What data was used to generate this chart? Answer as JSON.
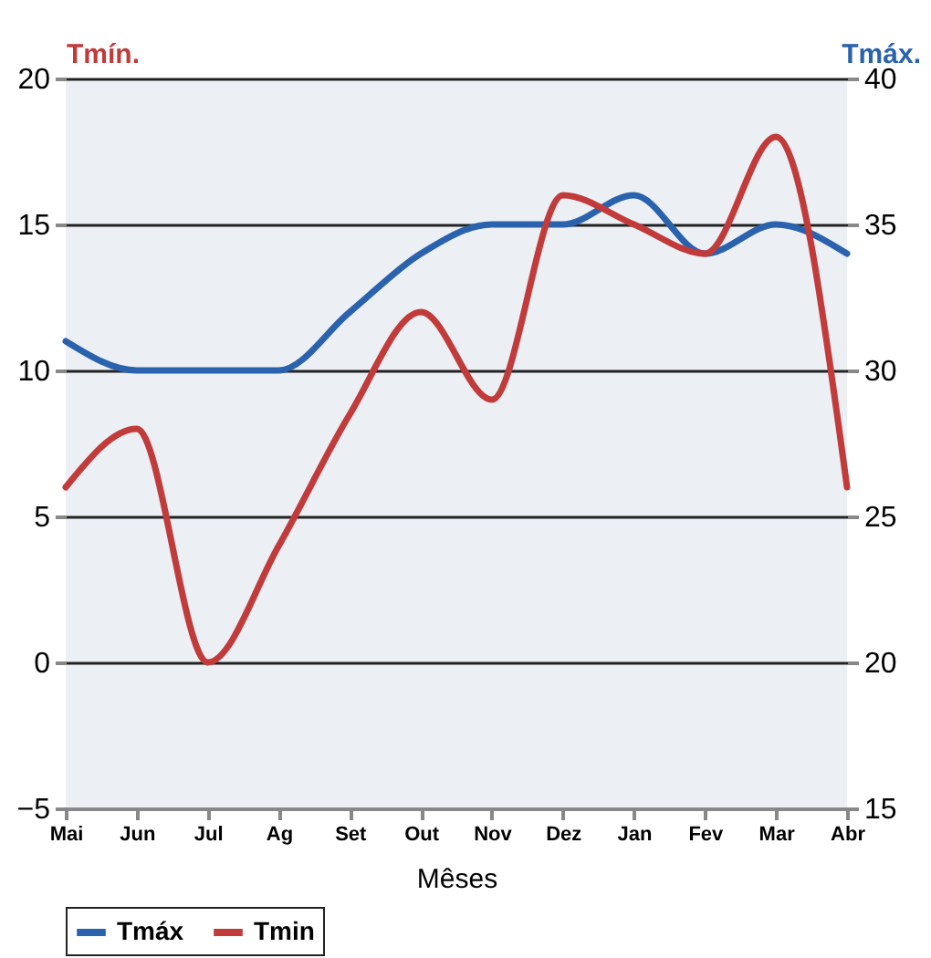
{
  "chart_data": {
    "type": "line",
    "xlabel": "Mêses",
    "ylabel": "Tmín.",
    "y2label": "Tmáx.",
    "categories": [
      "Mai",
      "Jun",
      "Jul",
      "Ag",
      "Set",
      "Out",
      "Nov",
      "Dez",
      "Jan",
      "Fev",
      "Mar",
      "Abr"
    ],
    "series": [
      {
        "name": "Tmáx",
        "color": "#2a62ad",
        "axis": "y2",
        "values": [
          31,
          30,
          30,
          30,
          32,
          34,
          35,
          35,
          36,
          34,
          35,
          34
        ]
      },
      {
        "name": "Tmin",
        "color": "#c23b3b",
        "values": [
          6,
          8,
          0,
          4,
          8.5,
          12,
          9,
          16,
          15,
          14,
          18,
          6
        ]
      }
    ],
    "ylim": [
      -5,
      20
    ],
    "yticks": [
      -5,
      0,
      5,
      10,
      15,
      20
    ],
    "y2lim": [
      15,
      40
    ],
    "y2ticks": [
      15,
      20,
      25,
      30,
      35,
      40
    ],
    "grid": "y",
    "legend": "bottom",
    "line_style": "solid",
    "marker": "none"
  }
}
